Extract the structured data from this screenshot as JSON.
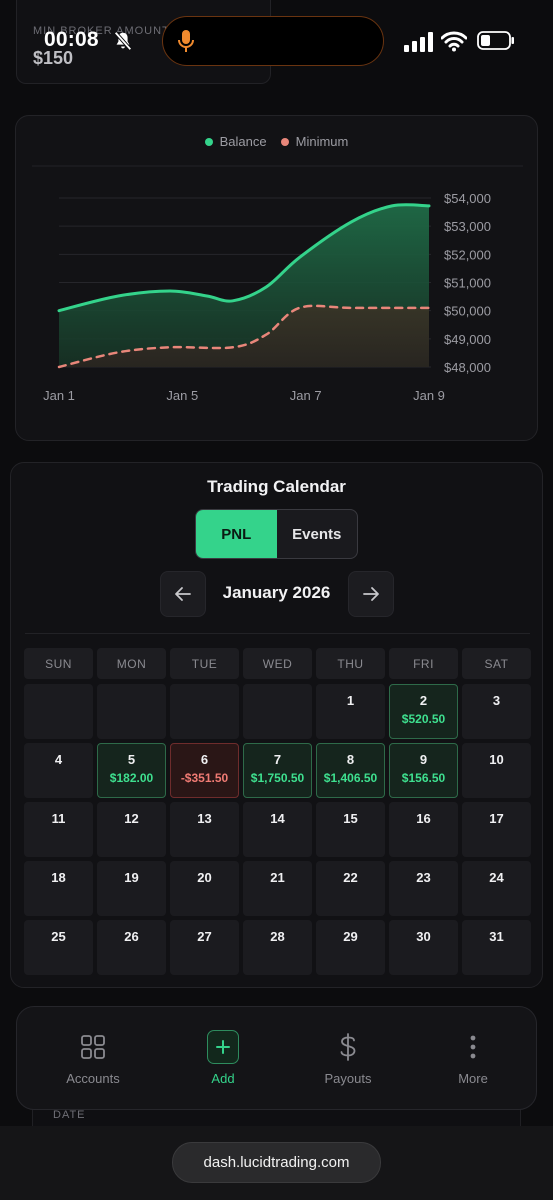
{
  "status_bar": {
    "time": "00:08",
    "icons": [
      "bell-slash-icon",
      "microphone-icon",
      "cellular-signal-icon",
      "wifi-icon",
      "battery-icon"
    ]
  },
  "top_card": {
    "label": "MIN BROKER AMOUNT",
    "value": "$150"
  },
  "chart_data": {
    "type": "area",
    "legend": [
      {
        "label": "Balance",
        "color": "#34d38b"
      },
      {
        "label": "Minimum",
        "color": "#e8867a"
      }
    ],
    "legend_placement": "top-center",
    "x_labels": [
      "Jan 1",
      "Jan 5",
      "Jan 7",
      "Jan 9"
    ],
    "y_ticks": [
      "$54,000",
      "$53,000",
      "$52,000",
      "$51,000",
      "$50,000",
      "$49,000",
      "$48,000"
    ],
    "y_values": [
      54000,
      53000,
      52000,
      51000,
      50000,
      49000,
      48000
    ],
    "ylim": [
      48000,
      54000
    ],
    "grid": true,
    "series": [
      {
        "name": "Balance",
        "color": "#34d38b",
        "style": "solid",
        "points": [
          {
            "x": 0,
            "y": 50000
          },
          {
            "x": 0.16,
            "y": 50520
          },
          {
            "x": 0.3,
            "y": 50700
          },
          {
            "x": 0.4,
            "y": 50520
          },
          {
            "x": 0.47,
            "y": 50350
          },
          {
            "x": 0.56,
            "y": 50840
          },
          {
            "x": 0.65,
            "y": 51890
          },
          {
            "x": 0.79,
            "y": 53150
          },
          {
            "x": 0.9,
            "y": 53720
          },
          {
            "x": 1,
            "y": 53720
          }
        ]
      },
      {
        "name": "Minimum",
        "color": "#e8867a",
        "style": "dashed",
        "points": [
          {
            "x": 0,
            "y": 48000
          },
          {
            "x": 0.16,
            "y": 48520
          },
          {
            "x": 0.3,
            "y": 48700
          },
          {
            "x": 0.47,
            "y": 48700
          },
          {
            "x": 0.56,
            "y": 49150
          },
          {
            "x": 0.65,
            "y": 50100
          },
          {
            "x": 0.79,
            "y": 50100
          },
          {
            "x": 1,
            "y": 50100
          }
        ]
      }
    ]
  },
  "calendar": {
    "title": "Trading Calendar",
    "tabs": [
      {
        "label": "PNL",
        "active": true
      },
      {
        "label": "Events",
        "active": false
      }
    ],
    "month": "January 2026",
    "prev_icon": "arrow-left-icon",
    "next_icon": "arrow-right-icon",
    "weekdays": [
      "SUN",
      "MON",
      "TUE",
      "WED",
      "THU",
      "FRI",
      "SAT"
    ],
    "days": [
      {
        "num": "",
        "pnl": "",
        "type": "empty"
      },
      {
        "num": "",
        "pnl": "",
        "type": "empty"
      },
      {
        "num": "",
        "pnl": "",
        "type": "empty"
      },
      {
        "num": "",
        "pnl": "",
        "type": "empty"
      },
      {
        "num": "1",
        "pnl": "",
        "type": "none"
      },
      {
        "num": "2",
        "pnl": "$520.50",
        "type": "pos"
      },
      {
        "num": "3",
        "pnl": "",
        "type": "none"
      },
      {
        "num": "4",
        "pnl": "",
        "type": "none"
      },
      {
        "num": "5",
        "pnl": "$182.00",
        "type": "pos"
      },
      {
        "num": "6",
        "pnl": "-$351.50",
        "type": "neg"
      },
      {
        "num": "7",
        "pnl": "$1,750.50",
        "type": "pos"
      },
      {
        "num": "8",
        "pnl": "$1,406.50",
        "type": "pos"
      },
      {
        "num": "9",
        "pnl": "$156.50",
        "type": "pos"
      },
      {
        "num": "10",
        "pnl": "",
        "type": "none"
      },
      {
        "num": "11",
        "pnl": "",
        "type": "none"
      },
      {
        "num": "12",
        "pnl": "",
        "type": "none"
      },
      {
        "num": "13",
        "pnl": "",
        "type": "none"
      },
      {
        "num": "14",
        "pnl": "",
        "type": "none"
      },
      {
        "num": "15",
        "pnl": "",
        "type": "none"
      },
      {
        "num": "16",
        "pnl": "",
        "type": "none"
      },
      {
        "num": "17",
        "pnl": "",
        "type": "none"
      },
      {
        "num": "18",
        "pnl": "",
        "type": "none"
      },
      {
        "num": "19",
        "pnl": "",
        "type": "none"
      },
      {
        "num": "20",
        "pnl": "",
        "type": "none"
      },
      {
        "num": "21",
        "pnl": "",
        "type": "none"
      },
      {
        "num": "22",
        "pnl": "",
        "type": "none"
      },
      {
        "num": "23",
        "pnl": "",
        "type": "none"
      },
      {
        "num": "24",
        "pnl": "",
        "type": "none"
      },
      {
        "num": "25",
        "pnl": "",
        "type": "none"
      },
      {
        "num": "26",
        "pnl": "",
        "type": "none"
      },
      {
        "num": "27",
        "pnl": "",
        "type": "none"
      },
      {
        "num": "28",
        "pnl": "",
        "type": "none"
      },
      {
        "num": "29",
        "pnl": "",
        "type": "none"
      },
      {
        "num": "30",
        "pnl": "",
        "type": "none"
      },
      {
        "num": "31",
        "pnl": "",
        "type": "none"
      }
    ]
  },
  "bottom_nav": {
    "items": [
      {
        "label": "Accounts",
        "icon": "grid-icon",
        "active": false
      },
      {
        "label": "Add",
        "icon": "plus-icon",
        "active": true
      },
      {
        "label": "Payouts",
        "icon": "dollar-icon",
        "active": false
      },
      {
        "label": "More",
        "icon": "more-vertical-icon",
        "active": false
      }
    ]
  },
  "under_card": {
    "label": "DATE"
  },
  "browser": {
    "url": "dash.lucidtrading.com"
  },
  "colors": {
    "accent": "#34d38b",
    "negative": "#f07b74",
    "background": "#0c0c0e",
    "card": "#121215"
  }
}
